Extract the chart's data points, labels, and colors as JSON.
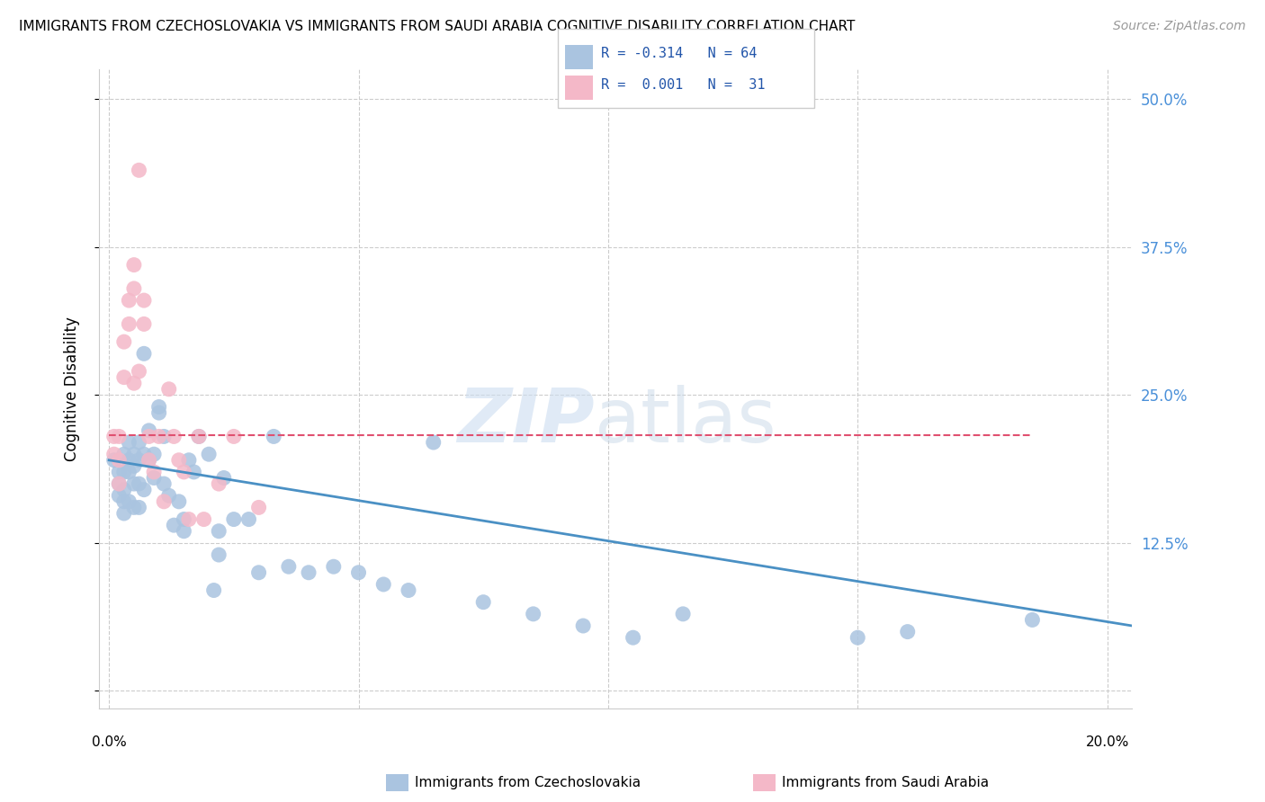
{
  "title": "IMMIGRANTS FROM CZECHOSLOVAKIA VS IMMIGRANTS FROM SAUDI ARABIA COGNITIVE DISABILITY CORRELATION CHART",
  "source": "Source: ZipAtlas.com",
  "ylabel": "Cognitive Disability",
  "y_ticks": [
    0.0,
    0.125,
    0.25,
    0.375,
    0.5
  ],
  "y_tick_labels": [
    "",
    "12.5%",
    "25.0%",
    "37.5%",
    "50.0%"
  ],
  "x_ticks": [
    0.0,
    0.05,
    0.1,
    0.15,
    0.2
  ],
  "xlim": [
    -0.002,
    0.205
  ],
  "ylim": [
    -0.015,
    0.525
  ],
  "color_blue": "#aac4e0",
  "color_pink": "#f4b8c8",
  "color_blue_line": "#4a90c4",
  "color_pink_line": "#e05070",
  "czechoslovakia_x": [
    0.001,
    0.002,
    0.002,
    0.002,
    0.003,
    0.003,
    0.003,
    0.003,
    0.003,
    0.004,
    0.004,
    0.004,
    0.004,
    0.005,
    0.005,
    0.005,
    0.005,
    0.006,
    0.006,
    0.006,
    0.006,
    0.007,
    0.007,
    0.007,
    0.008,
    0.008,
    0.009,
    0.009,
    0.01,
    0.01,
    0.011,
    0.011,
    0.012,
    0.013,
    0.014,
    0.015,
    0.015,
    0.016,
    0.017,
    0.018,
    0.02,
    0.021,
    0.022,
    0.022,
    0.023,
    0.025,
    0.028,
    0.03,
    0.033,
    0.036,
    0.04,
    0.045,
    0.05,
    0.055,
    0.06,
    0.065,
    0.075,
    0.085,
    0.095,
    0.105,
    0.115,
    0.15,
    0.16,
    0.185
  ],
  "czechoslovakia_y": [
    0.195,
    0.185,
    0.175,
    0.165,
    0.2,
    0.185,
    0.17,
    0.16,
    0.15,
    0.21,
    0.195,
    0.185,
    0.16,
    0.2,
    0.19,
    0.175,
    0.155,
    0.21,
    0.195,
    0.175,
    0.155,
    0.285,
    0.2,
    0.17,
    0.22,
    0.195,
    0.2,
    0.18,
    0.24,
    0.235,
    0.215,
    0.175,
    0.165,
    0.14,
    0.16,
    0.145,
    0.135,
    0.195,
    0.185,
    0.215,
    0.2,
    0.085,
    0.135,
    0.115,
    0.18,
    0.145,
    0.145,
    0.1,
    0.215,
    0.105,
    0.1,
    0.105,
    0.1,
    0.09,
    0.085,
    0.21,
    0.075,
    0.065,
    0.055,
    0.045,
    0.065,
    0.045,
    0.05,
    0.06
  ],
  "saudi_x": [
    0.001,
    0.001,
    0.002,
    0.002,
    0.002,
    0.003,
    0.003,
    0.004,
    0.004,
    0.005,
    0.005,
    0.005,
    0.006,
    0.006,
    0.007,
    0.007,
    0.008,
    0.008,
    0.009,
    0.01,
    0.011,
    0.012,
    0.013,
    0.014,
    0.015,
    0.016,
    0.018,
    0.019,
    0.022,
    0.025,
    0.03
  ],
  "saudi_y": [
    0.215,
    0.2,
    0.215,
    0.195,
    0.175,
    0.295,
    0.265,
    0.33,
    0.31,
    0.36,
    0.34,
    0.26,
    0.44,
    0.27,
    0.33,
    0.31,
    0.215,
    0.195,
    0.185,
    0.215,
    0.16,
    0.255,
    0.215,
    0.195,
    0.185,
    0.145,
    0.215,
    0.145,
    0.175,
    0.215,
    0.155
  ],
  "blue_trend_x": [
    0.0,
    0.205
  ],
  "blue_trend_y": [
    0.195,
    0.055
  ],
  "pink_trend_x": [
    0.0,
    0.185
  ],
  "pink_trend_y": [
    0.216,
    0.216
  ],
  "legend_text1": "R = -0.314   N = 64",
  "legend_text2": "R =  0.001   N =  31",
  "bottom_label1": "Immigrants from Czechoslovakia",
  "bottom_label2": "Immigrants from Saudi Arabia"
}
